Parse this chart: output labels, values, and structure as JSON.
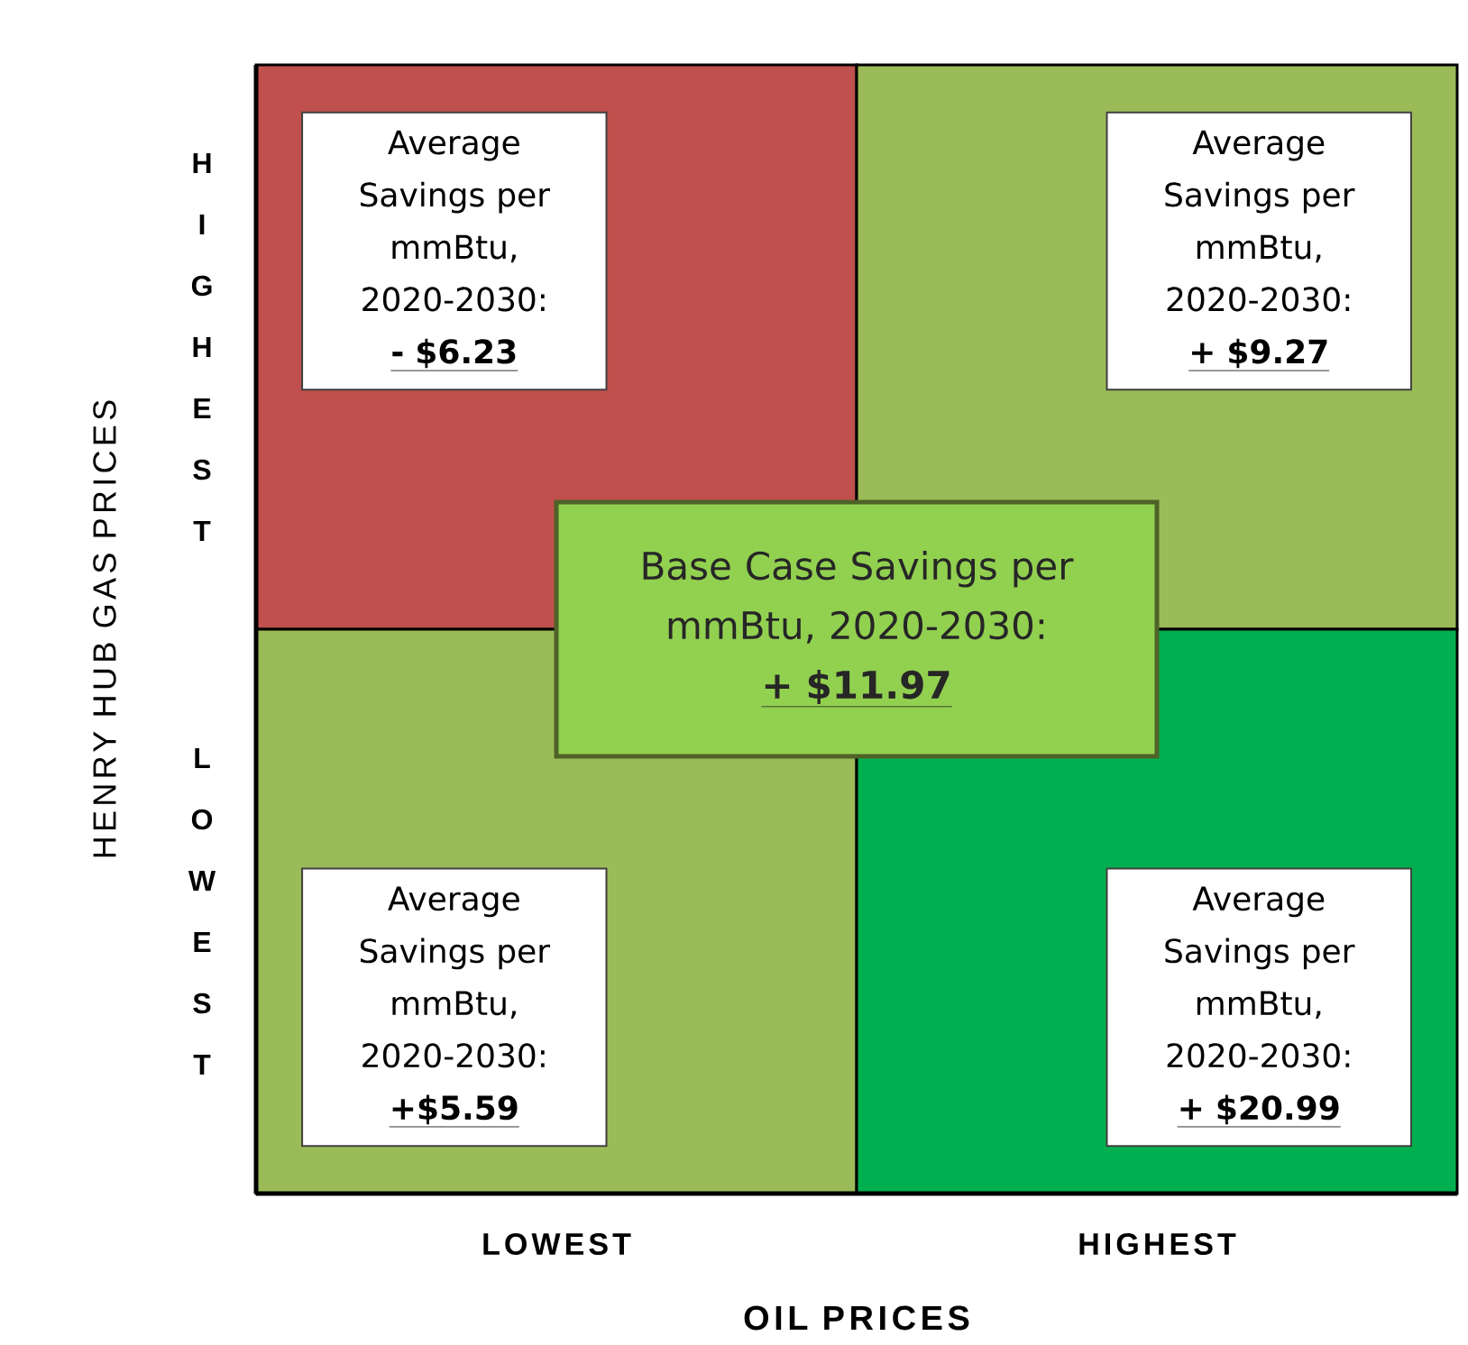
{
  "chart_data": {
    "type": "heatmap",
    "xlabel": "OIL PRICES",
    "ylabel": "HENRY HUB GAS PRICES",
    "categories": [
      "LOWEST",
      "HIGHEST"
    ],
    "y_categories": [
      "HIGHEST",
      "LOWEST"
    ],
    "cells": [
      [
        -6.23,
        9.27
      ],
      [
        5.59,
        20.99
      ]
    ],
    "cell_labels": [
      [
        "- $6.23",
        "+ $9.27"
      ],
      [
        "+$5.59",
        "+ $20.99"
      ]
    ],
    "annotations": [
      "Average Savings per mmBtu, 2020-2030:",
      "Average Savings per mmBtu, 2020-2030:",
      "Average Savings per mmBtu, 2020-2030:",
      "Average Savings per mmBtu, 2020-2030:",
      "Base Case Savings per mmBtu, 2020-2030:",
      "+ $11.97"
    ]
  }
}
